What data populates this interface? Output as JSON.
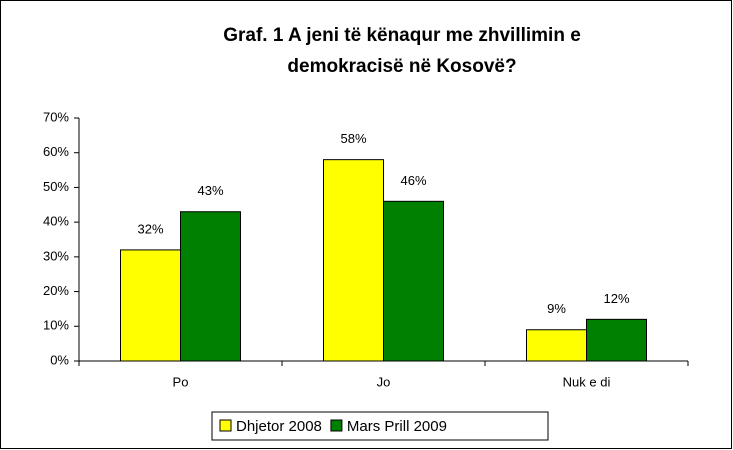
{
  "chart_data": {
    "type": "bar",
    "title": [
      "Graf. 1   A jeni të kënaqur me zhvillimin e",
      "demokracisë në Kosovë?"
    ],
    "categories": [
      "Po",
      "Jo",
      "Nuk e di"
    ],
    "series": [
      {
        "name": "Dhjetor 2008",
        "color": "#ffff00",
        "values": [
          32,
          58,
          9
        ],
        "value_labels": [
          "32%",
          "58%",
          "9%"
        ]
      },
      {
        "name": "Mars Prill 2009",
        "color": "#008000",
        "values": [
          43,
          46,
          12
        ],
        "value_labels": [
          "43%",
          "46%",
          "12%"
        ]
      }
    ],
    "ylim": [
      0,
      70
    ],
    "yticks": [
      {
        "value": 0,
        "label": "0%"
      },
      {
        "value": 10,
        "label": "10%"
      },
      {
        "value": 20,
        "label": "20%"
      },
      {
        "value": 30,
        "label": "30%"
      },
      {
        "value": 40,
        "label": "40%"
      },
      {
        "value": 50,
        "label": "50%"
      },
      {
        "value": 60,
        "label": "60%"
      },
      {
        "value": 70,
        "label": "70%"
      }
    ],
    "legend": "bottom"
  }
}
